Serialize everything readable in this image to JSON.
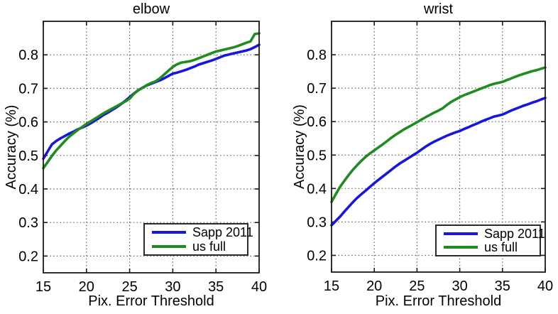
{
  "figure": {
    "background": "#ffffff",
    "colors": {
      "sapp_blue": "#1616e0",
      "us_full_green": "#1f8c1f",
      "axis": "#1a1a1a",
      "grid": "#5e5e5e",
      "text": "#000000"
    }
  },
  "chart_data": [
    {
      "type": "line",
      "title": "elbow",
      "xlabel": "Pix. Error Threshold",
      "ylabel": "Accuracy (%)",
      "xlim": [
        15,
        40
      ],
      "ylim": [
        0.15,
        0.9
      ],
      "xticks": [
        15,
        20,
        25,
        30,
        35,
        40
      ],
      "yticks": [
        0.2,
        0.3,
        0.4,
        0.5,
        0.6,
        0.7,
        0.8
      ],
      "grid": "dotted",
      "legend_position": "lower right",
      "x": [
        15,
        15.5,
        16,
        16.5,
        17,
        17.5,
        18,
        18.5,
        19,
        19.5,
        20,
        20.5,
        21,
        21.5,
        22,
        22.5,
        23,
        23.5,
        24,
        24.5,
        25,
        25.5,
        26,
        26.5,
        27,
        27.5,
        28,
        28.5,
        29,
        29.5,
        30,
        30.5,
        31,
        31.5,
        32,
        32.5,
        33,
        33.5,
        34,
        34.5,
        35,
        35.5,
        36,
        36.5,
        37,
        37.5,
        38,
        38.5,
        39,
        39.5,
        40
      ],
      "series": [
        {
          "name": "Sapp 2011",
          "color": "#1616e0",
          "y": [
            0.49,
            0.512,
            0.533,
            0.543,
            0.551,
            0.558,
            0.565,
            0.571,
            0.578,
            0.583,
            0.589,
            0.596,
            0.604,
            0.612,
            0.621,
            0.628,
            0.636,
            0.644,
            0.653,
            0.663,
            0.674,
            0.685,
            0.695,
            0.702,
            0.709,
            0.714,
            0.719,
            0.724,
            0.73,
            0.737,
            0.744,
            0.747,
            0.751,
            0.755,
            0.76,
            0.765,
            0.771,
            0.775,
            0.779,
            0.783,
            0.788,
            0.793,
            0.798,
            0.801,
            0.804,
            0.807,
            0.81,
            0.813,
            0.817,
            0.823,
            0.83
          ]
        },
        {
          "name": "us full",
          "color": "#1f8c1f",
          "y": [
            0.462,
            0.48,
            0.499,
            0.515,
            0.529,
            0.543,
            0.556,
            0.566,
            0.576,
            0.585,
            0.594,
            0.602,
            0.61,
            0.618,
            0.626,
            0.633,
            0.64,
            0.647,
            0.654,
            0.661,
            0.669,
            0.684,
            0.694,
            0.702,
            0.71,
            0.716,
            0.721,
            0.73,
            0.741,
            0.753,
            0.764,
            0.772,
            0.777,
            0.779,
            0.781,
            0.785,
            0.79,
            0.795,
            0.8,
            0.805,
            0.81,
            0.813,
            0.816,
            0.819,
            0.822,
            0.826,
            0.831,
            0.836,
            0.84,
            0.862,
            0.864
          ]
        }
      ]
    },
    {
      "type": "line",
      "title": "wrist",
      "xlabel": "Pix. Error Threshold",
      "ylabel": "Accuracy (%)",
      "xlim": [
        15,
        40
      ],
      "ylim": [
        0.15,
        0.9
      ],
      "xticks": [
        15,
        20,
        25,
        30,
        35,
        40
      ],
      "yticks": [
        0.2,
        0.3,
        0.4,
        0.5,
        0.6,
        0.7,
        0.8
      ],
      "grid": "dotted",
      "legend_position": "lower right",
      "x": [
        15,
        15.5,
        16,
        16.5,
        17,
        17.5,
        18,
        18.5,
        19,
        19.5,
        20,
        20.5,
        21,
        21.5,
        22,
        22.5,
        23,
        23.5,
        24,
        24.5,
        25,
        25.5,
        26,
        26.5,
        27,
        27.5,
        28,
        28.5,
        29,
        29.5,
        30,
        30.5,
        31,
        31.5,
        32,
        32.5,
        33,
        33.5,
        34,
        34.5,
        35,
        35.5,
        36,
        36.5,
        37,
        37.5,
        38,
        38.5,
        39,
        39.5,
        40
      ],
      "series": [
        {
          "name": "Sapp 2011",
          "color": "#1616e0",
          "y": [
            0.29,
            0.303,
            0.316,
            0.331,
            0.345,
            0.359,
            0.372,
            0.383,
            0.394,
            0.405,
            0.416,
            0.426,
            0.436,
            0.446,
            0.456,
            0.466,
            0.475,
            0.483,
            0.491,
            0.499,
            0.507,
            0.516,
            0.525,
            0.533,
            0.54,
            0.546,
            0.552,
            0.558,
            0.563,
            0.568,
            0.572,
            0.578,
            0.583,
            0.589,
            0.594,
            0.6,
            0.605,
            0.61,
            0.615,
            0.618,
            0.621,
            0.627,
            0.633,
            0.638,
            0.643,
            0.648,
            0.652,
            0.657,
            0.661,
            0.666,
            0.671
          ]
        },
        {
          "name": "us full",
          "color": "#1f8c1f",
          "y": [
            0.36,
            0.383,
            0.405,
            0.423,
            0.44,
            0.456,
            0.47,
            0.483,
            0.495,
            0.505,
            0.514,
            0.523,
            0.532,
            0.542,
            0.552,
            0.561,
            0.569,
            0.577,
            0.584,
            0.591,
            0.598,
            0.606,
            0.613,
            0.62,
            0.627,
            0.633,
            0.64,
            0.65,
            0.659,
            0.666,
            0.673,
            0.679,
            0.684,
            0.689,
            0.694,
            0.699,
            0.704,
            0.709,
            0.713,
            0.716,
            0.719,
            0.724,
            0.729,
            0.734,
            0.739,
            0.743,
            0.747,
            0.751,
            0.754,
            0.758,
            0.762
          ]
        }
      ]
    }
  ]
}
